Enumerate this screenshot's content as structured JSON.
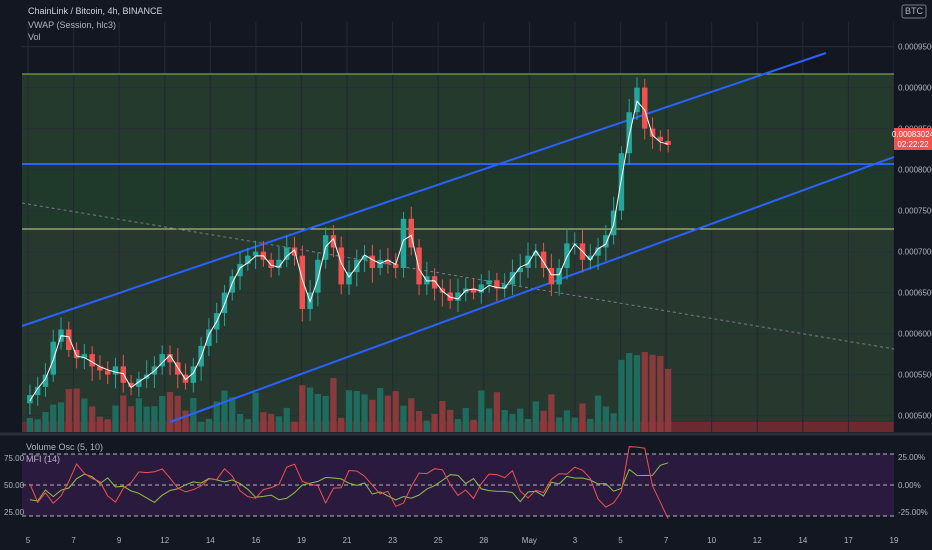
{
  "header": {
    "symbol_line": "ChainLink / Bitcoin, 4h, BINANCE",
    "indicator_1": "VWAP (Session, hlc3)",
    "indicator_2": "Vol",
    "currency_badge": "BTC"
  },
  "price_axis": {
    "ticks": [
      "0.00095000",
      "0.00090000",
      "0.00085000",
      "0.00080000",
      "0.00075000",
      "0.00070000",
      "0.00065000",
      "0.00060000",
      "0.00055000",
      "0.00050000"
    ],
    "last_price": "0.00083024",
    "countdown": "02:22:22"
  },
  "time_axis": {
    "ticks": [
      "5",
      "7",
      "9",
      "12",
      "14",
      "16",
      "19",
      "21",
      "23",
      "25",
      "28",
      "May",
      "3",
      "5",
      "7",
      "10",
      "12",
      "14",
      "17",
      "19"
    ]
  },
  "oscillator": {
    "label_1": "Volume Osc (5, 10)",
    "label_2": "MFI (14)",
    "left_ticks": [
      "75.00",
      "50.00",
      "25.00"
    ],
    "right_ticks": [
      "25.00%",
      "0.00%",
      "-25.00%"
    ]
  },
  "colors": {
    "background": "#131722",
    "up": "#26a69a",
    "down": "#ef5350",
    "channel": "#2962ff",
    "vwap": "#ffffff",
    "mfi": "#ef5350",
    "vol_osc": "#8bc34a",
    "zone_band": "#2e4d2e",
    "osc_band": "#2a1640"
  },
  "chart_data": {
    "type": "candlestick",
    "price_range": [
      0.00048,
      0.00098
    ],
    "close_series": [
      0.000525,
      0.000535,
      0.00055,
      0.00059,
      0.000605,
      0.00058,
      0.00057,
      0.000575,
      0.00056,
      0.000555,
      0.00055,
      0.00056,
      0.00054,
      0.000535,
      0.000545,
      0.00055,
      0.00056,
      0.000575,
      0.000565,
      0.00055,
      0.00054,
      0.00056,
      0.000585,
      0.000605,
      0.000625,
      0.00065,
      0.00067,
      0.000685,
      0.000695,
      0.0007,
      0.00069,
      0.00068,
      0.00069,
      0.000705,
      0.000695,
      0.00063,
      0.00065,
      0.00069,
      0.00072,
      0.000705,
      0.00066,
      0.000675,
      0.00069,
      0.000695,
      0.00068,
      0.00069,
      0.000685,
      0.00068,
      0.00074,
      0.000705,
      0.00066,
      0.00067,
      0.000655,
      0.00065,
      0.00064,
      0.00065,
      0.000655,
      0.00065,
      0.00066,
      0.000665,
      0.000655,
      0.00066,
      0.000675,
      0.00068,
      0.000695,
      0.0007,
      0.00068,
      0.00066,
      0.00068,
      0.00071,
      0.00071,
      0.00069,
      0.000695,
      0.000705,
      0.00072,
      0.00075,
      0.00082,
      0.00087,
      0.0009,
      0.00085,
      0.00084,
      0.000835,
      0.00083
    ],
    "horizontal_levels": [
      0.000903,
      0.0008,
      0.00072
    ],
    "volume_oscillator_ticks": [
      "25.00%",
      "0.00%",
      "-25.00%"
    ],
    "mfi_ticks": [
      "75.00",
      "50.00",
      "25.00"
    ]
  }
}
